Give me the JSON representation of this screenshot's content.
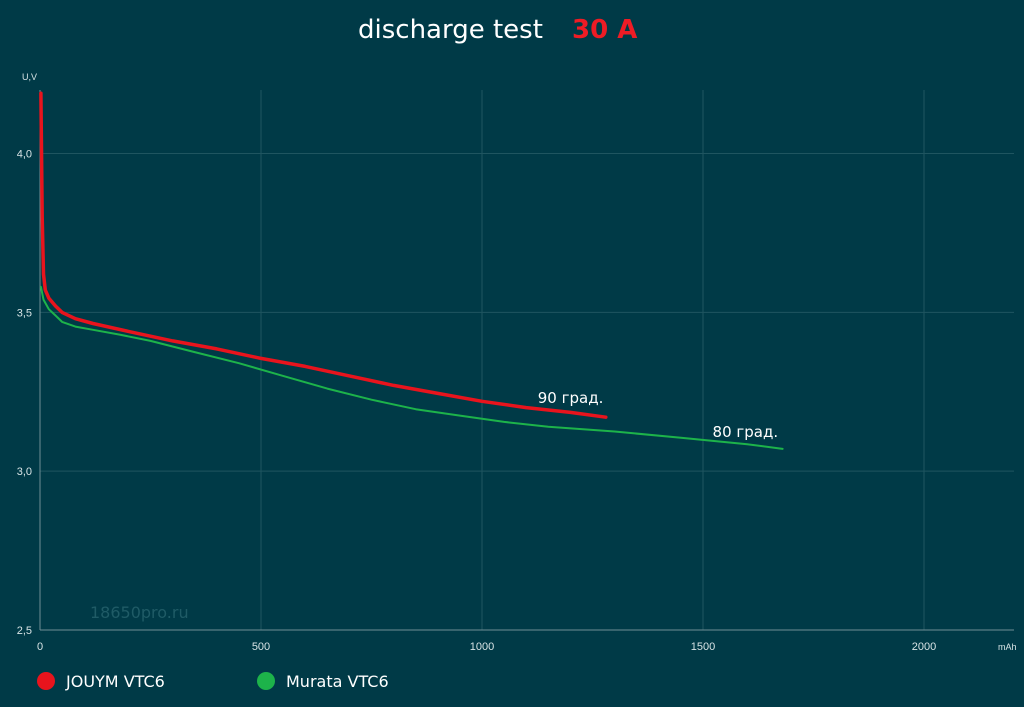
{
  "chart_data": {
    "type": "line",
    "title": "discharge test",
    "title_accent": "30 A",
    "xlabel": "mAh",
    "ylabel": "U,V",
    "xlim": [
      0,
      2200
    ],
    "ylim": [
      2.5,
      4.2
    ],
    "x_ticks": [
      0,
      500,
      1000,
      1500,
      2000
    ],
    "x_tick_labels": [
      "0",
      "500",
      "1000",
      "1500",
      "2000"
    ],
    "y_ticks": [
      2.5,
      3.0,
      3.5,
      4.0
    ],
    "y_tick_labels": [
      "2,5",
      "3,0",
      "3,5",
      "4,0"
    ],
    "grid": true,
    "legend_placement": "bottom-left",
    "watermark": "18650pro.ru",
    "series": [
      {
        "name": "JOUYM VTC6",
        "color": "#e8141d",
        "annotation": "90 град.",
        "points": [
          [
            2,
            4.19
          ],
          [
            5,
            3.8
          ],
          [
            8,
            3.62
          ],
          [
            12,
            3.57
          ],
          [
            20,
            3.545
          ],
          [
            35,
            3.52
          ],
          [
            50,
            3.5
          ],
          [
            80,
            3.48
          ],
          [
            120,
            3.465
          ],
          [
            200,
            3.44
          ],
          [
            300,
            3.41
          ],
          [
            400,
            3.385
          ],
          [
            500,
            3.355
          ],
          [
            600,
            3.33
          ],
          [
            700,
            3.3
          ],
          [
            800,
            3.27
          ],
          [
            900,
            3.245
          ],
          [
            1000,
            3.22
          ],
          [
            1100,
            3.2
          ],
          [
            1200,
            3.185
          ],
          [
            1280,
            3.17
          ]
        ]
      },
      {
        "name": "Murata VTC6",
        "color": "#1db34a",
        "annotation": "80 град.",
        "points": [
          [
            2,
            3.58
          ],
          [
            8,
            3.54
          ],
          [
            20,
            3.51
          ],
          [
            35,
            3.49
          ],
          [
            50,
            3.47
          ],
          [
            80,
            3.455
          ],
          [
            120,
            3.445
          ],
          [
            180,
            3.43
          ],
          [
            250,
            3.41
          ],
          [
            350,
            3.375
          ],
          [
            450,
            3.34
          ],
          [
            550,
            3.3
          ],
          [
            650,
            3.26
          ],
          [
            750,
            3.225
          ],
          [
            850,
            3.195
          ],
          [
            950,
            3.175
          ],
          [
            1050,
            3.155
          ],
          [
            1150,
            3.14
          ],
          [
            1300,
            3.125
          ],
          [
            1450,
            3.105
          ],
          [
            1600,
            3.085
          ],
          [
            1680,
            3.07
          ]
        ]
      }
    ]
  }
}
